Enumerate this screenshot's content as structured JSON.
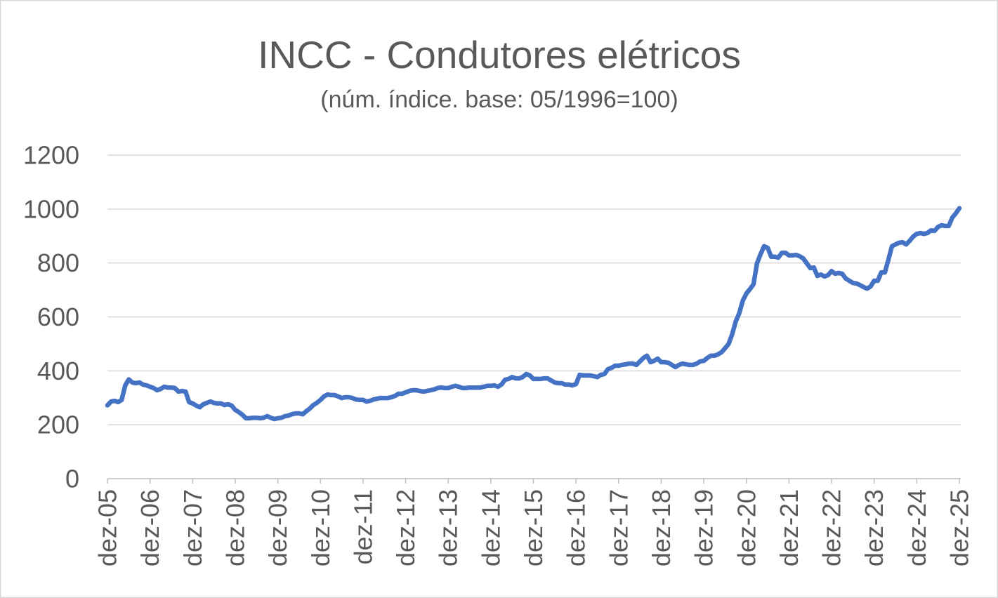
{
  "chart_data": {
    "type": "line",
    "title": "INCC - Condutores elétricos",
    "subtitle": "(núm. índice. base: 05/1996=100)",
    "ylim": [
      0,
      1200
    ],
    "xlim": [
      "2005-12",
      "2025-12"
    ],
    "grid": true,
    "y_ticks": [
      0,
      200,
      400,
      600,
      800,
      1000,
      1200
    ],
    "x_ticks": [
      {
        "x": "2005-12",
        "label": "dez-05"
      },
      {
        "x": "2006-12",
        "label": "dez-06"
      },
      {
        "x": "2007-12",
        "label": "dez-07"
      },
      {
        "x": "2008-12",
        "label": "dez-08"
      },
      {
        "x": "2009-12",
        "label": "dez-09"
      },
      {
        "x": "2010-12",
        "label": "dez-10"
      },
      {
        "x": "2011-12",
        "label": "dez-11"
      },
      {
        "x": "2012-12",
        "label": "dez-12"
      },
      {
        "x": "2013-12",
        "label": "dez-13"
      },
      {
        "x": "2014-12",
        "label": "dez-14"
      },
      {
        "x": "2015-12",
        "label": "dez-15"
      },
      {
        "x": "2016-12",
        "label": "dez-16"
      },
      {
        "x": "2017-12",
        "label": "dez-17"
      },
      {
        "x": "2018-12",
        "label": "dez-18"
      },
      {
        "x": "2019-12",
        "label": "dez-19"
      },
      {
        "x": "2020-12",
        "label": "dez-20"
      },
      {
        "x": "2021-12",
        "label": "dez-21"
      },
      {
        "x": "2022-12",
        "label": "dez-22"
      },
      {
        "x": "2023-12",
        "label": "dez-23"
      },
      {
        "x": "2024-12",
        "label": "dez-24"
      },
      {
        "x": "2025-12",
        "label": "dez-25"
      }
    ],
    "colors": {
      "series": "#4472C4",
      "grid": "#D9D9D9",
      "axis": "#BFBFBF",
      "text": "#595959",
      "border": "#D9D9D9"
    },
    "x": [
      "2005-12",
      "2006-01",
      "2006-02",
      "2006-03",
      "2006-04",
      "2006-05",
      "2006-06",
      "2006-07",
      "2006-08",
      "2006-09",
      "2006-10",
      "2006-11",
      "2006-12",
      "2007-01",
      "2007-02",
      "2007-03",
      "2007-04",
      "2007-05",
      "2007-06",
      "2007-07",
      "2007-08",
      "2007-09",
      "2007-10",
      "2007-11",
      "2007-12",
      "2008-01",
      "2008-02",
      "2008-03",
      "2008-04",
      "2008-05",
      "2008-06",
      "2008-07",
      "2008-08",
      "2008-09",
      "2008-10",
      "2008-11",
      "2008-12",
      "2009-01",
      "2009-02",
      "2009-03",
      "2009-04",
      "2009-05",
      "2009-06",
      "2009-07",
      "2009-08",
      "2009-09",
      "2009-10",
      "2009-11",
      "2009-12",
      "2010-01",
      "2010-02",
      "2010-03",
      "2010-04",
      "2010-05",
      "2010-06",
      "2010-07",
      "2010-08",
      "2010-09",
      "2010-10",
      "2010-11",
      "2010-12",
      "2011-01",
      "2011-02",
      "2011-03",
      "2011-04",
      "2011-05",
      "2011-06",
      "2011-07",
      "2011-08",
      "2011-09",
      "2011-10",
      "2011-11",
      "2011-12",
      "2012-01",
      "2012-02",
      "2012-03",
      "2012-04",
      "2012-05",
      "2012-06",
      "2012-07",
      "2012-08",
      "2012-09",
      "2012-10",
      "2012-11",
      "2012-12",
      "2013-01",
      "2013-02",
      "2013-03",
      "2013-04",
      "2013-05",
      "2013-06",
      "2013-07",
      "2013-08",
      "2013-09",
      "2013-10",
      "2013-11",
      "2013-12",
      "2014-01",
      "2014-02",
      "2014-03",
      "2014-04",
      "2014-05",
      "2014-06",
      "2014-07",
      "2014-08",
      "2014-09",
      "2014-10",
      "2014-11",
      "2014-12",
      "2015-01",
      "2015-02",
      "2015-03",
      "2015-04",
      "2015-05",
      "2015-06",
      "2015-07",
      "2015-08",
      "2015-09",
      "2015-10",
      "2015-11",
      "2015-12",
      "2016-01",
      "2016-02",
      "2016-03",
      "2016-04",
      "2016-05",
      "2016-06",
      "2016-07",
      "2016-08",
      "2016-09",
      "2016-10",
      "2016-11",
      "2016-12",
      "2017-01",
      "2017-02",
      "2017-03",
      "2017-04",
      "2017-05",
      "2017-06",
      "2017-07",
      "2017-08",
      "2017-09",
      "2017-10",
      "2017-11",
      "2017-12",
      "2018-01",
      "2018-02",
      "2018-03",
      "2018-04",
      "2018-05",
      "2018-06",
      "2018-07",
      "2018-08",
      "2018-09",
      "2018-10",
      "2018-11",
      "2018-12",
      "2019-01",
      "2019-02",
      "2019-03",
      "2019-04",
      "2019-05",
      "2019-06",
      "2019-07",
      "2019-08",
      "2019-09",
      "2019-10",
      "2019-11",
      "2019-12",
      "2020-01",
      "2020-02",
      "2020-03",
      "2020-04",
      "2020-05",
      "2020-06",
      "2020-07",
      "2020-08",
      "2020-09",
      "2020-10",
      "2020-11",
      "2020-12",
      "2021-01",
      "2021-02",
      "2021-03",
      "2021-04",
      "2021-05",
      "2021-06",
      "2021-07",
      "2021-08",
      "2021-09",
      "2021-10",
      "2021-11",
      "2021-12",
      "2022-01",
      "2022-02",
      "2022-03",
      "2022-04",
      "2022-05",
      "2022-06",
      "2022-07",
      "2022-08",
      "2022-09",
      "2022-10",
      "2022-11",
      "2022-12",
      "2023-01",
      "2023-02",
      "2023-03",
      "2023-04",
      "2023-05",
      "2023-06",
      "2023-07",
      "2023-08",
      "2023-09",
      "2023-10",
      "2023-11",
      "2023-12",
      "2024-01",
      "2024-02",
      "2024-03",
      "2024-04",
      "2024-05",
      "2024-06",
      "2024-07",
      "2024-08",
      "2024-09",
      "2024-10",
      "2024-11",
      "2024-12",
      "2025-01",
      "2025-02",
      "2025-03",
      "2025-04",
      "2025-05",
      "2025-06",
      "2025-07",
      "2025-08",
      "2025-09",
      "2025-10",
      "2025-11",
      "2025-12"
    ],
    "series": [
      {
        "values": [
          272,
          286,
          289,
          284,
          292,
          346,
          368,
          357,
          354,
          357,
          349,
          346,
          341,
          336,
          328,
          333,
          341,
          338,
          338,
          336,
          323,
          325,
          323,
          284,
          279,
          271,
          265,
          276,
          281,
          286,
          281,
          279,
          279,
          273,
          276,
          271,
          255,
          247,
          237,
          224,
          224,
          226,
          226,
          224,
          226,
          232,
          226,
          221,
          224,
          226,
          232,
          234,
          239,
          242,
          242,
          239,
          250,
          260,
          273,
          281,
          292,
          305,
          312,
          310,
          310,
          305,
          299,
          302,
          302,
          299,
          294,
          292,
          292,
          286,
          289,
          294,
          297,
          299,
          299,
          299,
          302,
          307,
          315,
          315,
          320,
          325,
          328,
          328,
          325,
          323,
          325,
          328,
          331,
          336,
          338,
          336,
          336,
          341,
          344,
          341,
          336,
          336,
          338,
          338,
          338,
          338,
          341,
          344,
          344,
          346,
          341,
          349,
          367,
          370,
          377,
          372,
          372,
          377,
          388,
          383,
          370,
          370,
          370,
          372,
          372,
          364,
          357,
          354,
          354,
          349,
          349,
          346,
          351,
          385,
          383,
          383,
          383,
          380,
          377,
          385,
          388,
          406,
          411,
          419,
          419,
          422,
          424,
          427,
          427,
          422,
          435,
          448,
          456,
          432,
          437,
          445,
          432,
          432,
          430,
          422,
          414,
          422,
          427,
          424,
          422,
          422,
          427,
          435,
          437,
          448,
          456,
          456,
          461,
          469,
          484,
          500,
          536,
          583,
          614,
          661,
          687,
          703,
          721,
          799,
          833,
          862,
          856,
          823,
          823,
          820,
          838,
          838,
          828,
          828,
          830,
          825,
          817,
          799,
          781,
          783,
          752,
          757,
          750,
          755,
          770,
          760,
          763,
          760,
          742,
          734,
          726,
          724,
          718,
          711,
          705,
          713,
          734,
          734,
          765,
          765,
          812,
          862,
          869,
          875,
          877,
          869,
          882,
          898,
          908,
          911,
          908,
          911,
          921,
          919,
          934,
          940,
          937,
          937,
          968,
          984,
          1003
        ]
      }
    ]
  }
}
